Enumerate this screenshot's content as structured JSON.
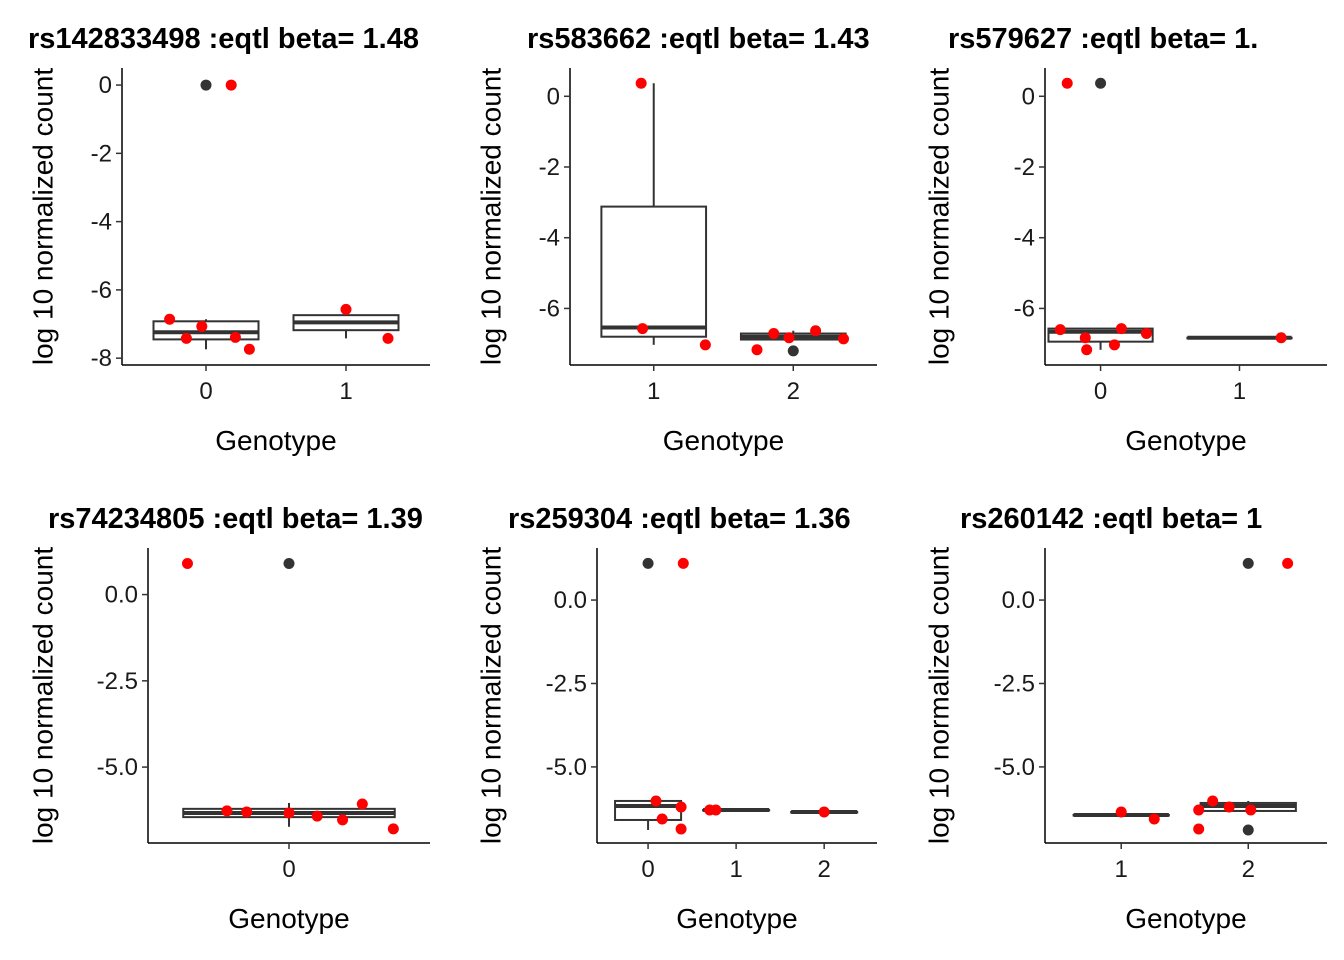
{
  "chart_data": [
    {
      "type": "box",
      "title": "rs142833498 :eqtl beta= 1.48",
      "xlabel": "Genotype",
      "ylabel": "log 10 normalized count",
      "xlim": [
        -0.6,
        1.6
      ],
      "xticks": [
        0,
        1
      ],
      "ylim": [
        -8.2,
        0.5
      ],
      "yticks": [
        0,
        -2,
        -4,
        -6,
        -8
      ],
      "boxes": [
        {
          "x": 0,
          "whisker_low": -7.74,
          "q1": -7.45,
          "median": -7.24,
          "q3": -6.92,
          "whisker_high": -6.86
        },
        {
          "x": 1,
          "whisker_low": -7.42,
          "q1": -7.18,
          "median": -6.95,
          "q3": -6.74,
          "whisker_high": -6.57
        }
      ],
      "outliers": {
        "color": "#333333",
        "x": [
          0
        ],
        "y": [
          0
        ]
      },
      "points": {
        "color": "#ff0000",
        "x": [
          -0.26,
          -0.14,
          -0.03,
          0.21,
          0.31,
          0.18,
          1.0,
          1.3
        ],
        "y": [
          -6.86,
          -7.42,
          -7.07,
          -7.39,
          -7.74,
          0,
          -6.57,
          -7.42
        ]
      }
    },
    {
      "type": "box",
      "title": "rs583662 :eqtl beta= 1.43",
      "xlabel": "Genotype",
      "ylabel": "log 10 normalized count",
      "xlim": [
        0.4,
        2.6
      ],
      "xticks": [
        1,
        2
      ],
      "ylim": [
        -7.6,
        0.8
      ],
      "yticks": [
        0,
        -2,
        -4,
        -6
      ],
      "boxes": [
        {
          "x": 1,
          "whisker_low": -7.03,
          "q1": -6.8,
          "median": -6.54,
          "q3": -3.12,
          "whisker_high": 0.37
        },
        {
          "x": 2,
          "whisker_low": -6.88,
          "q1": -6.88,
          "median": -6.8,
          "q3": -6.71,
          "whisker_high": -6.63
        }
      ],
      "outliers": {
        "color": "#333333",
        "x": [
          2
        ],
        "y": [
          -7.2
        ]
      },
      "points": {
        "color": "#ff0000",
        "x": [
          0.91,
          0.92,
          1.37,
          1.74,
          1.86,
          1.97,
          2.16,
          2.36
        ],
        "y": [
          0.37,
          -6.57,
          -7.03,
          -7.17,
          -6.71,
          -6.83,
          -6.63,
          -6.86
        ]
      }
    },
    {
      "type": "box",
      "title": "rs579627 :eqtl beta= 1.",
      "xlabel": "Genotype",
      "ylabel": "log 10 normalized count",
      "xlim": [
        -0.4,
        1.63
      ],
      "xticks": [
        0,
        1
      ],
      "ylim": [
        -7.6,
        0.8
      ],
      "yticks": [
        0,
        -2,
        -4,
        -6
      ],
      "boxes": [
        {
          "x": 0,
          "whisker_low": -7.17,
          "q1": -6.94,
          "median": -6.66,
          "q3": -6.57,
          "whisker_high": -6.57
        },
        {
          "x": 1,
          "whisker_low": -6.83,
          "q1": -6.83,
          "median": -6.83,
          "q3": -6.83,
          "whisker_high": -6.83
        }
      ],
      "outliers": {
        "color": "#333333",
        "x": [
          0
        ],
        "y": [
          0.37
        ]
      },
      "points": {
        "color": "#ff0000",
        "x": [
          -0.24,
          -0.29,
          -0.11,
          -0.1,
          0.1,
          0.15,
          0.33,
          1.3
        ],
        "y": [
          0.37,
          -6.6,
          -6.83,
          -7.17,
          -7.03,
          -6.57,
          -6.71,
          -6.83
        ]
      }
    },
    {
      "type": "box",
      "title": "rs74234805 :eqtl beta= 1.39",
      "xlabel": "Genotype",
      "ylabel": "log 10 normalized count",
      "xlim": [
        -0.5,
        0.5
      ],
      "xticks": [
        0
      ],
      "ylim": [
        -7.2,
        1.35
      ],
      "yticks": [
        {
          "value": 0,
          "label": "0.0"
        },
        {
          "value": -2.5,
          "label": "-2.5"
        },
        {
          "value": -5,
          "label": "-5.0"
        }
      ],
      "boxes": [
        {
          "x": 0,
          "whisker_low": -6.73,
          "q1": -6.45,
          "median": -6.33,
          "q3": -6.21,
          "whisker_high": -6.04
        }
      ],
      "outliers": {
        "color": "#333333",
        "x": [
          0
        ],
        "y": [
          0.9
        ]
      },
      "points": {
        "color": "#ff0000",
        "x": [
          -0.36,
          -0.22,
          -0.15,
          0,
          0.1,
          0.19,
          0.26,
          0.37
        ],
        "y": [
          0.9,
          -6.27,
          -6.3,
          -6.33,
          -6.42,
          -6.53,
          -6.07,
          -6.79
        ]
      }
    },
    {
      "type": "box",
      "title": "rs259304 :eqtl beta= 1.36",
      "xlabel": "Genotype",
      "ylabel": "log 10 normalized count",
      "xlim": [
        -0.58,
        2.6
      ],
      "xticks": [
        0,
        1,
        2
      ],
      "ylim": [
        -7.28,
        1.56
      ],
      "yticks": [
        {
          "value": 0,
          "label": "0.0"
        },
        {
          "value": -2.5,
          "label": "-2.5"
        },
        {
          "value": -5,
          "label": "-5.0"
        }
      ],
      "boxes": [
        {
          "x": 0,
          "whisker_low": -6.89,
          "q1": -6.59,
          "median": -6.17,
          "q3": -6.02,
          "whisker_high": -6.02
        },
        {
          "x": 1,
          "whisker_low": -6.29,
          "q1": -6.29,
          "median": -6.29,
          "q3": -6.29,
          "whisker_high": -6.29
        },
        {
          "x": 2,
          "whisker_low": -6.35,
          "q1": -6.35,
          "median": -6.35,
          "q3": -6.35,
          "whisker_high": -6.35
        }
      ],
      "outliers": {
        "color": "#333333",
        "x": [
          0
        ],
        "y": [
          1.1
        ]
      },
      "points": {
        "color": "#ff0000",
        "x": [
          0.4,
          0.09,
          0.16,
          0.375,
          0.375,
          0.7,
          0.77,
          2.0
        ],
        "y": [
          1.1,
          -6.02,
          -6.56,
          -6.86,
          -6.2,
          -6.29,
          -6.29,
          -6.35
        ]
      }
    },
    {
      "type": "box",
      "title": "rs260142 :eqtl beta= 1",
      "xlabel": "Genotype",
      "ylabel": "log 10 normalized count",
      "xlim": [
        0.4,
        2.62
      ],
      "xticks": [
        1,
        2
      ],
      "ylim": [
        -7.28,
        1.56
      ],
      "yticks": [
        {
          "value": 0,
          "label": "0.0"
        },
        {
          "value": -2.5,
          "label": "-2.5"
        },
        {
          "value": -5,
          "label": "-5.0"
        }
      ],
      "boxes": [
        {
          "x": 1,
          "whisker_low": -6.44,
          "q1": -6.44,
          "median": -6.44,
          "q3": -6.44,
          "whisker_high": -6.44
        },
        {
          "x": 2,
          "whisker_low": -6.32,
          "q1": -6.32,
          "median": -6.17,
          "q3": -6.08,
          "whisker_high": -6.02
        }
      ],
      "outliers": {
        "color": "#333333",
        "x": [
          2,
          2
        ],
        "y": [
          -6.89,
          1.1
        ]
      },
      "points": {
        "color": "#ff0000",
        "x": [
          1.0,
          1.26,
          1.61,
          1.61,
          1.72,
          1.85,
          2.02,
          2.31
        ],
        "y": [
          -6.35,
          -6.56,
          -6.29,
          -6.86,
          -6.02,
          -6.2,
          -6.29,
          1.1
        ]
      }
    }
  ]
}
